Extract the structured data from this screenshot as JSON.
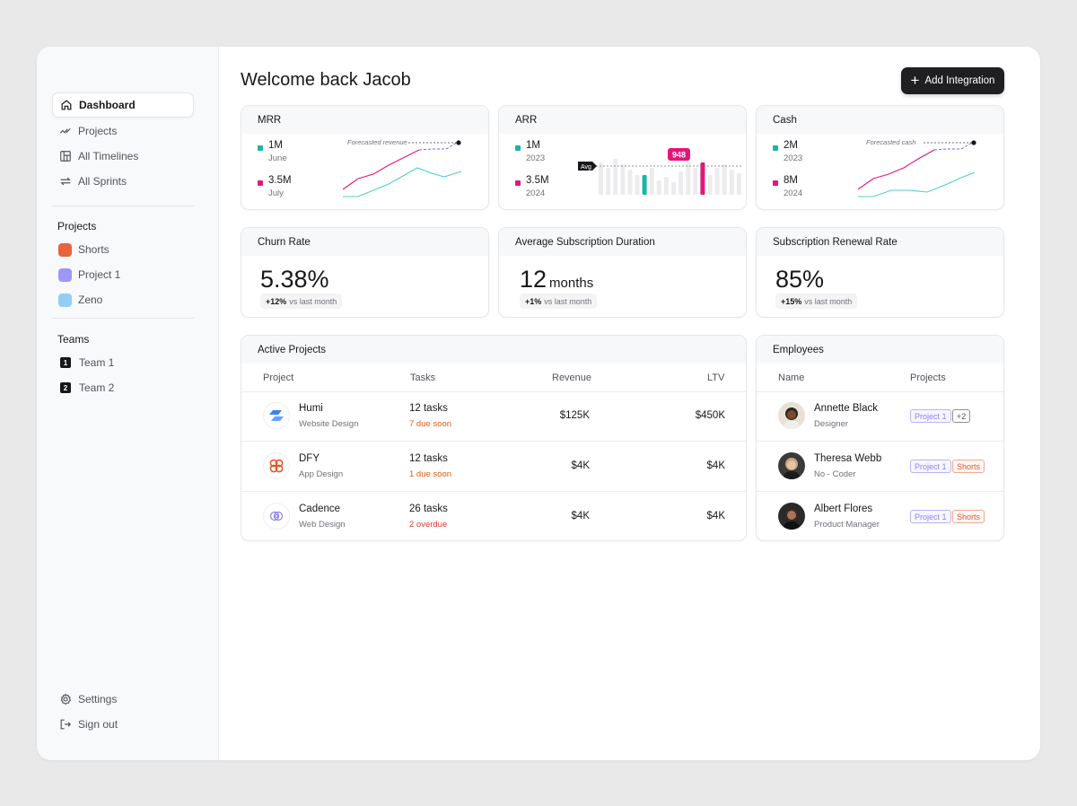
{
  "sidebar": {
    "nav": [
      {
        "label": "Dashboard",
        "icon": "home-icon",
        "active": true
      },
      {
        "label": "Projects",
        "icon": "trend-icon"
      },
      {
        "label": "All Timelines",
        "icon": "timeline-icon"
      },
      {
        "label": "All Sprints",
        "icon": "sprint-icon"
      }
    ],
    "projects_heading": "Projects",
    "projects": [
      {
        "label": "Shorts",
        "color": "#e8643c"
      },
      {
        "label": "Project 1",
        "color": "#9f97f7"
      },
      {
        "label": "Zeno",
        "color": "#93cdf7"
      }
    ],
    "teams_heading": "Teams",
    "teams": [
      {
        "label": "Team 1",
        "badge": "1"
      },
      {
        "label": "Team 2",
        "badge": "2"
      }
    ],
    "settings_label": "Settings",
    "signout_label": "Sign out"
  },
  "header": {
    "title": "Welcome back Jacob",
    "add_button_label": "Add Integration"
  },
  "colors": {
    "teal": "#14b8a6",
    "pink": "#e6157a",
    "accent_dark": "#1f1f22",
    "warn": "#ea580c"
  },
  "mrr": {
    "title": "MRR",
    "m1_value": "1M",
    "m1_sub": "June",
    "m2_value": "3.5M",
    "m2_sub": "July",
    "forecast_label": "Forecasted revenue"
  },
  "arr": {
    "title": "ARR",
    "m1_value": "1M",
    "m1_sub": "2023",
    "m2_value": "3.5M",
    "m2_sub": "2024",
    "avg_label": "Avg",
    "highlight_value": "948"
  },
  "cash": {
    "title": "Cash",
    "m1_value": "2M",
    "m1_sub": "2023",
    "m2_value": "8M",
    "m2_sub": "2024",
    "forecast_label": "Forecasted cash"
  },
  "churn": {
    "title": "Churn Rate",
    "value": "5.38%",
    "delta": "+12%",
    "delta_text": "vs last month"
  },
  "duration": {
    "title": "Average Subscription Duration",
    "value": "12",
    "unit": "months",
    "delta": "+1%",
    "delta_text": "vs last month"
  },
  "renewal": {
    "title": "Subscription Renewal Rate",
    "value": "85%",
    "delta": "+15%",
    "delta_text": "vs last month"
  },
  "active_projects": {
    "title": "Active Projects",
    "columns": [
      "Project",
      "Tasks",
      "Revenue",
      "LTV"
    ],
    "rows": [
      {
        "name": "Humi",
        "type": "Website Design",
        "tasks": "12 tasks",
        "status": "7 due soon",
        "revenue": "$125K",
        "ltv": "$450K",
        "logo": "humi-logo-icon"
      },
      {
        "name": "DFY",
        "type": "App Design",
        "tasks": "12 tasks",
        "status": "1 due soon",
        "revenue": "$4K",
        "ltv": "$4K",
        "logo": "dfy-logo-icon"
      },
      {
        "name": "Cadence",
        "type": "Web Design",
        "tasks": "26 tasks",
        "status": "2 overdue",
        "revenue": "$4K",
        "ltv": "$4K",
        "logo": "cadence-logo-icon"
      }
    ]
  },
  "employees": {
    "title": "Employees",
    "columns": [
      "Name",
      "Projects"
    ],
    "rows": [
      {
        "name": "Annette Black",
        "role": "Designer",
        "tags": [
          "Project 1",
          "+2"
        ]
      },
      {
        "name": "Theresa Webb",
        "role": "No - Coder",
        "tags": [
          "Project 1",
          "Shorts"
        ]
      },
      {
        "name": "Albert Flores",
        "role": "Product Manager",
        "tags": [
          "Project 1",
          "Shorts"
        ]
      }
    ]
  }
}
